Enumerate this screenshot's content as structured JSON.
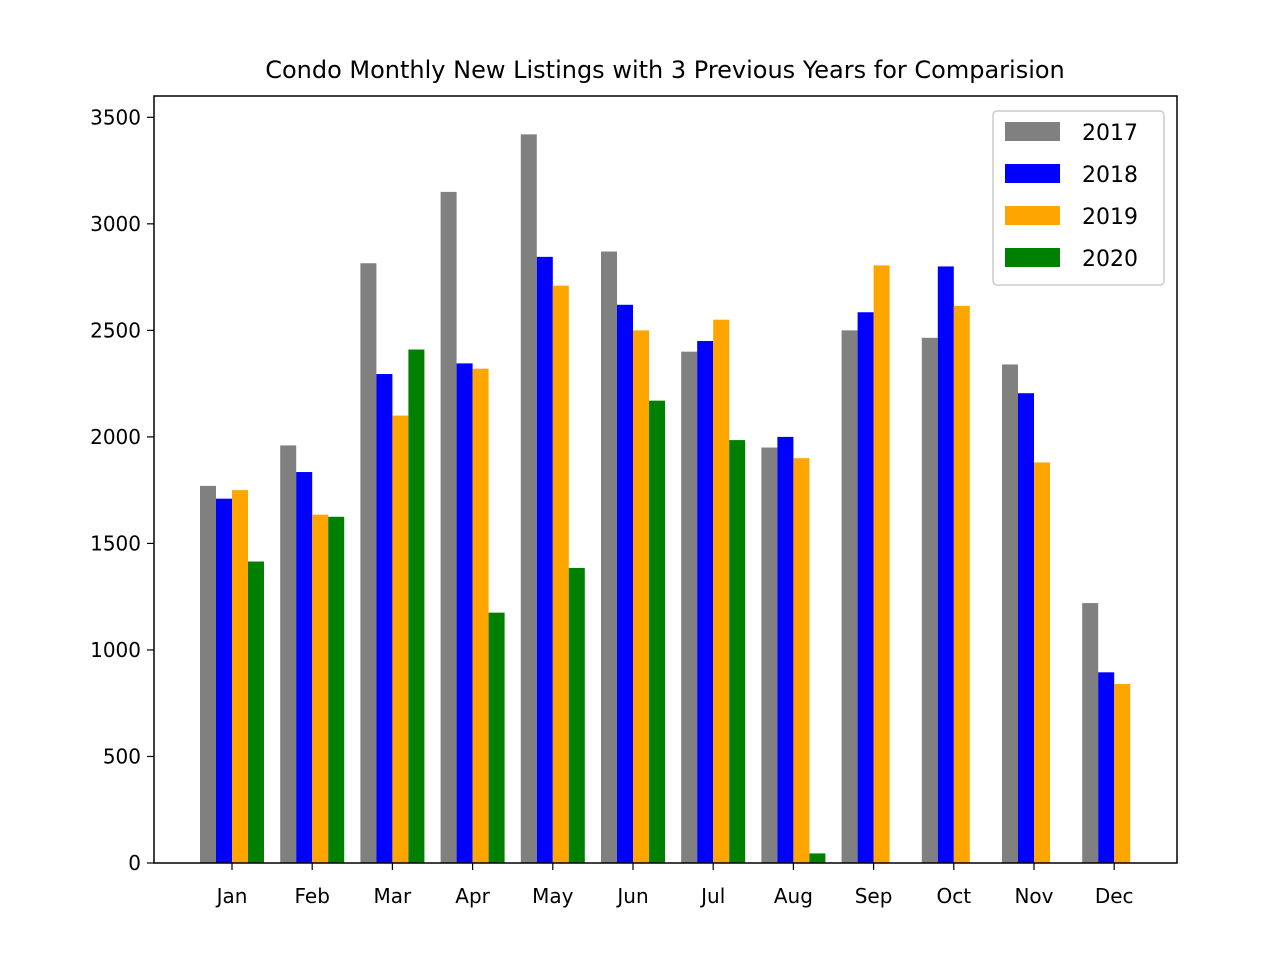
{
  "chart_data": {
    "type": "bar",
    "title": "Condo Monthly New Listings with 3 Previous Years for Comparision",
    "xlabel": "",
    "ylabel": "",
    "categories": [
      "Jan",
      "Feb",
      "Mar",
      "Apr",
      "May",
      "Jun",
      "Jul",
      "Aug",
      "Sep",
      "Oct",
      "Nov",
      "Dec"
    ],
    "ylim": [
      0,
      3600
    ],
    "yticks": [
      0,
      500,
      1000,
      1500,
      2000,
      2500,
      3000,
      3500
    ],
    "grid": false,
    "legend_position": "top-right",
    "series": [
      {
        "name": "2017",
        "color": "#808080",
        "values": [
          1770,
          1960,
          2815,
          3150,
          3420,
          2870,
          2400,
          1950,
          2500,
          2465,
          2340,
          1220
        ]
      },
      {
        "name": "2018",
        "color": "#0000ff",
        "values": [
          1710,
          1835,
          2295,
          2345,
          2845,
          2620,
          2450,
          2000,
          2585,
          2800,
          2205,
          895
        ]
      },
      {
        "name": "2019",
        "color": "#ffa500",
        "values": [
          1750,
          1635,
          2100,
          2320,
          2710,
          2500,
          2550,
          1900,
          2805,
          2615,
          1880,
          840
        ]
      },
      {
        "name": "2020",
        "color": "#008000",
        "values": [
          1415,
          1625,
          2410,
          1175,
          1385,
          2170,
          1985,
          45,
          null,
          null,
          null,
          null
        ]
      }
    ]
  }
}
